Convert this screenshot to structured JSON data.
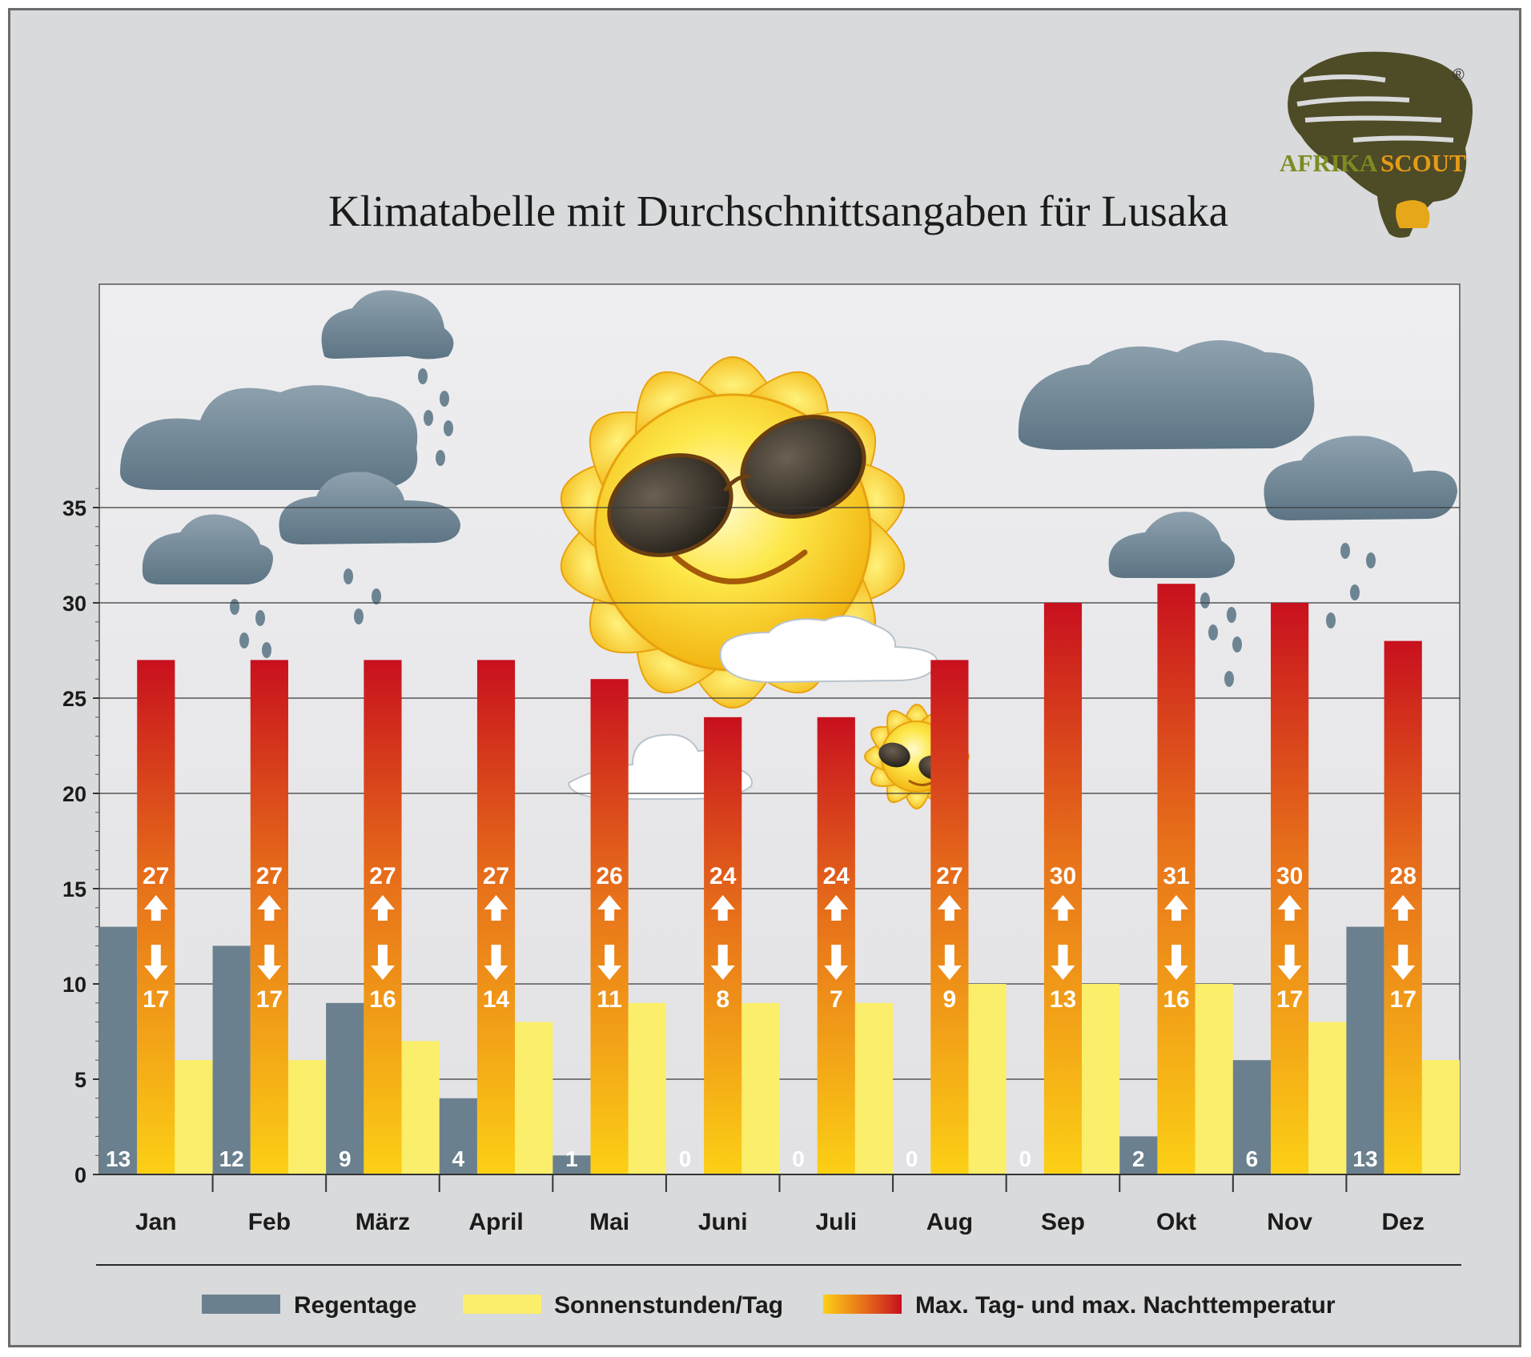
{
  "chart_data": {
    "type": "bar",
    "title": "Klimatabelle mit Durchschnittsangaben für Lusaka",
    "categories": [
      "Jan",
      "Feb",
      "März",
      "April",
      "Mai",
      "Juni",
      "Juli",
      "Aug",
      "Sep",
      "Okt",
      "Nov",
      "Dez"
    ],
    "series": [
      {
        "name": "Regentage",
        "values": [
          13,
          12,
          9,
          4,
          1,
          0,
          0,
          0,
          0,
          2,
          6,
          13
        ]
      },
      {
        "name": "Max. Tag- und max. Nachttemperatur",
        "max_day": [
          27,
          27,
          27,
          27,
          26,
          24,
          24,
          27,
          30,
          31,
          30,
          28
        ],
        "max_night": [
          17,
          17,
          16,
          14,
          11,
          8,
          7,
          9,
          13,
          16,
          17,
          17
        ]
      },
      {
        "name": "Sonnenstunden/Tag",
        "values": [
          6,
          6,
          7,
          8,
          9,
          9,
          9,
          10,
          10,
          10,
          8,
          6
        ]
      }
    ],
    "ylim": [
      0,
      47
    ],
    "yticks": [
      0,
      5,
      10,
      15,
      20,
      25,
      30,
      35
    ],
    "grid": true,
    "legend": "bottom",
    "colors": {
      "rain": "#6b808e",
      "sun": "#fbee6a",
      "temp_top": "#c8101e",
      "temp_mid": "#e8731a",
      "temp_bottom": "#fcd015"
    }
  },
  "legend": {
    "rain_label": "Regentage",
    "sun_label": "Sonnenstunden/Tag",
    "temp_label": "Max. Tag- und max. Nachttemperatur"
  },
  "logo": {
    "text_a": "AFRIKA",
    "text_b": "SCOUT",
    "registered": "®"
  }
}
